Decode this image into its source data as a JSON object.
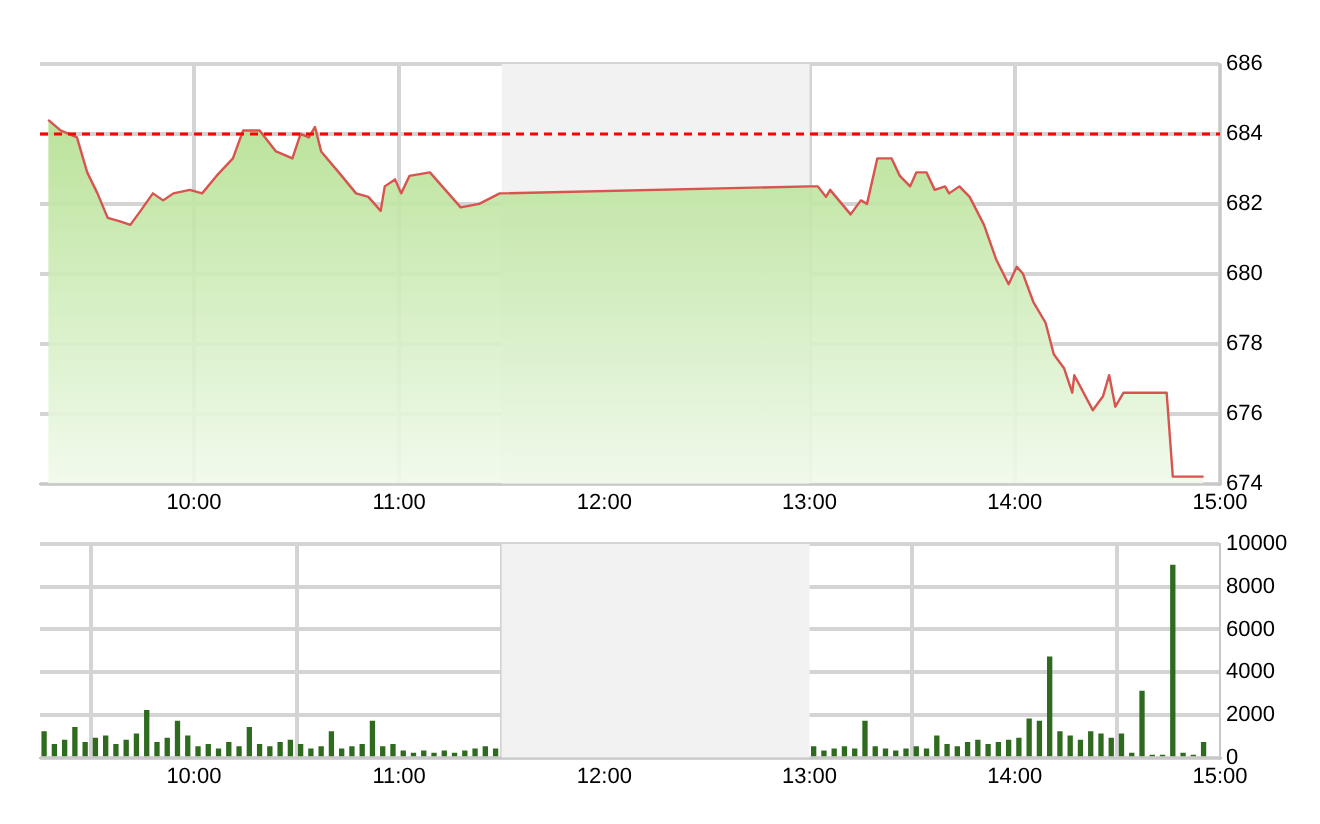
{
  "chart_data": [
    {
      "type": "area",
      "xlim": [
        9.25,
        15
      ],
      "xticks": [
        {
          "value": 10,
          "label": "10:00"
        },
        {
          "value": 11,
          "label": "11:00"
        },
        {
          "value": 12,
          "label": "12:00"
        },
        {
          "value": 13,
          "label": "13:00"
        },
        {
          "value": 14,
          "label": "14:00"
        },
        {
          "value": 15,
          "label": "15:00"
        }
      ],
      "ylim": [
        674,
        686
      ],
      "yticks": [
        674,
        676,
        678,
        680,
        682,
        684,
        686
      ],
      "grid": true,
      "legend": false,
      "marker": "none",
      "line_style": "solid",
      "series": [
        {
          "color": "#d9534f",
          "x": [
            9.29,
            9.35,
            9.43,
            9.48,
            9.53,
            9.58,
            9.64,
            9.69,
            9.74,
            9.8,
            9.85,
            9.9,
            9.98,
            10.04,
            10.11,
            10.19,
            10.24,
            10.32,
            10.4,
            10.48,
            10.52,
            10.56,
            10.59,
            10.62,
            10.72,
            10.79,
            10.85,
            10.91,
            10.93,
            10.98,
            11.01,
            11.05,
            11.15,
            11.24,
            11.3,
            11.39,
            11.49,
            13.0,
            13.04,
            13.08,
            13.1,
            13.2,
            13.25,
            13.28,
            13.33,
            13.4,
            13.44,
            13.49,
            13.52,
            13.57,
            13.61,
            13.66,
            13.68,
            13.73,
            13.78,
            13.85,
            13.91,
            13.97,
            14.01,
            14.04,
            14.09,
            14.15,
            14.19,
            14.24,
            14.28,
            14.29,
            14.38,
            14.43,
            14.46,
            14.49,
            14.53,
            14.74,
            14.77,
            14.92
          ],
          "values": [
            684.4,
            684.1,
            683.9,
            682.9,
            682.3,
            681.6,
            681.5,
            681.4,
            681.8,
            682.3,
            682.1,
            682.3,
            682.4,
            682.3,
            682.8,
            683.3,
            684.1,
            684.1,
            683.5,
            683.3,
            684.0,
            683.9,
            684.2,
            683.5,
            682.8,
            682.3,
            682.2,
            681.8,
            682.5,
            682.7,
            682.3,
            682.8,
            682.9,
            682.3,
            681.9,
            682.0,
            682.3,
            682.5,
            682.5,
            682.2,
            682.4,
            681.7,
            682.1,
            682.0,
            683.3,
            683.3,
            682.8,
            682.5,
            682.9,
            682.9,
            682.4,
            682.5,
            682.3,
            682.5,
            682.2,
            681.4,
            680.4,
            679.7,
            680.2,
            680.0,
            679.2,
            678.6,
            677.7,
            677.3,
            676.6,
            677.1,
            676.1,
            676.5,
            677.1,
            676.2,
            676.6,
            676.6,
            674.2,
            674.2
          ]
        }
      ],
      "ref_lines": [
        {
          "axis": "y",
          "value": 684,
          "color": "#ff0000",
          "line_style": "dashed"
        }
      ],
      "bands": [
        {
          "axis": "x",
          "from": 11.5,
          "to": 13,
          "color": "#f2f2f2"
        }
      ]
    },
    {
      "type": "bar",
      "xlim": [
        9.25,
        15
      ],
      "xticks": [
        {
          "value": 10,
          "label": "10:00"
        },
        {
          "value": 11,
          "label": "11:00"
        },
        {
          "value": 12,
          "label": "12:00"
        },
        {
          "value": 13,
          "label": "13:00"
        },
        {
          "value": 14,
          "label": "14:00"
        },
        {
          "value": 15,
          "label": "15:00"
        }
      ],
      "ylim": [
        0,
        10000
      ],
      "yticks": [
        0,
        2000,
        4000,
        6000,
        8000,
        10000
      ],
      "grid": true,
      "legend": false,
      "x": [
        9.27,
        9.32,
        9.37,
        9.42,
        9.47,
        9.52,
        9.57,
        9.62,
        9.67,
        9.72,
        9.77,
        9.82,
        9.87,
        9.92,
        9.97,
        10.02,
        10.07,
        10.12,
        10.17,
        10.22,
        10.27,
        10.32,
        10.37,
        10.42,
        10.47,
        10.52,
        10.57,
        10.62,
        10.67,
        10.72,
        10.77,
        10.82,
        10.87,
        10.92,
        10.97,
        11.02,
        11.07,
        11.12,
        11.17,
        11.22,
        11.27,
        11.32,
        11.37,
        11.42,
        11.47,
        13.02,
        13.07,
        13.12,
        13.17,
        13.22,
        13.27,
        13.32,
        13.37,
        13.42,
        13.47,
        13.52,
        13.57,
        13.62,
        13.67,
        13.72,
        13.77,
        13.82,
        13.87,
        13.92,
        13.97,
        14.02,
        14.07,
        14.12,
        14.17,
        14.22,
        14.27,
        14.32,
        14.37,
        14.42,
        14.47,
        14.52,
        14.57,
        14.62,
        14.67,
        14.72,
        14.77,
        14.82,
        14.87,
        14.92
      ],
      "values": [
        1200,
        600,
        800,
        1400,
        700,
        900,
        1000,
        600,
        800,
        1100,
        2200,
        700,
        900,
        1700,
        1000,
        500,
        600,
        400,
        700,
        500,
        1400,
        600,
        500,
        700,
        800,
        600,
        400,
        500,
        1200,
        400,
        500,
        600,
        1700,
        500,
        600,
        300,
        200,
        300,
        200,
        300,
        200,
        300,
        400,
        500,
        400,
        500,
        300,
        400,
        500,
        400,
        1700,
        500,
        400,
        300,
        400,
        500,
        400,
        1000,
        600,
        500,
        700,
        800,
        600,
        700,
        800,
        900,
        1800,
        1700,
        4700,
        1200,
        1000,
        800,
        1200,
        1100,
        900,
        1100,
        200,
        3100,
        100,
        100,
        9000,
        200,
        100,
        700
      ],
      "color": "#2e6b1f",
      "bands": [
        {
          "axis": "x",
          "from": 11.5,
          "to": 13,
          "color": "#f2f2f2"
        }
      ]
    }
  ]
}
